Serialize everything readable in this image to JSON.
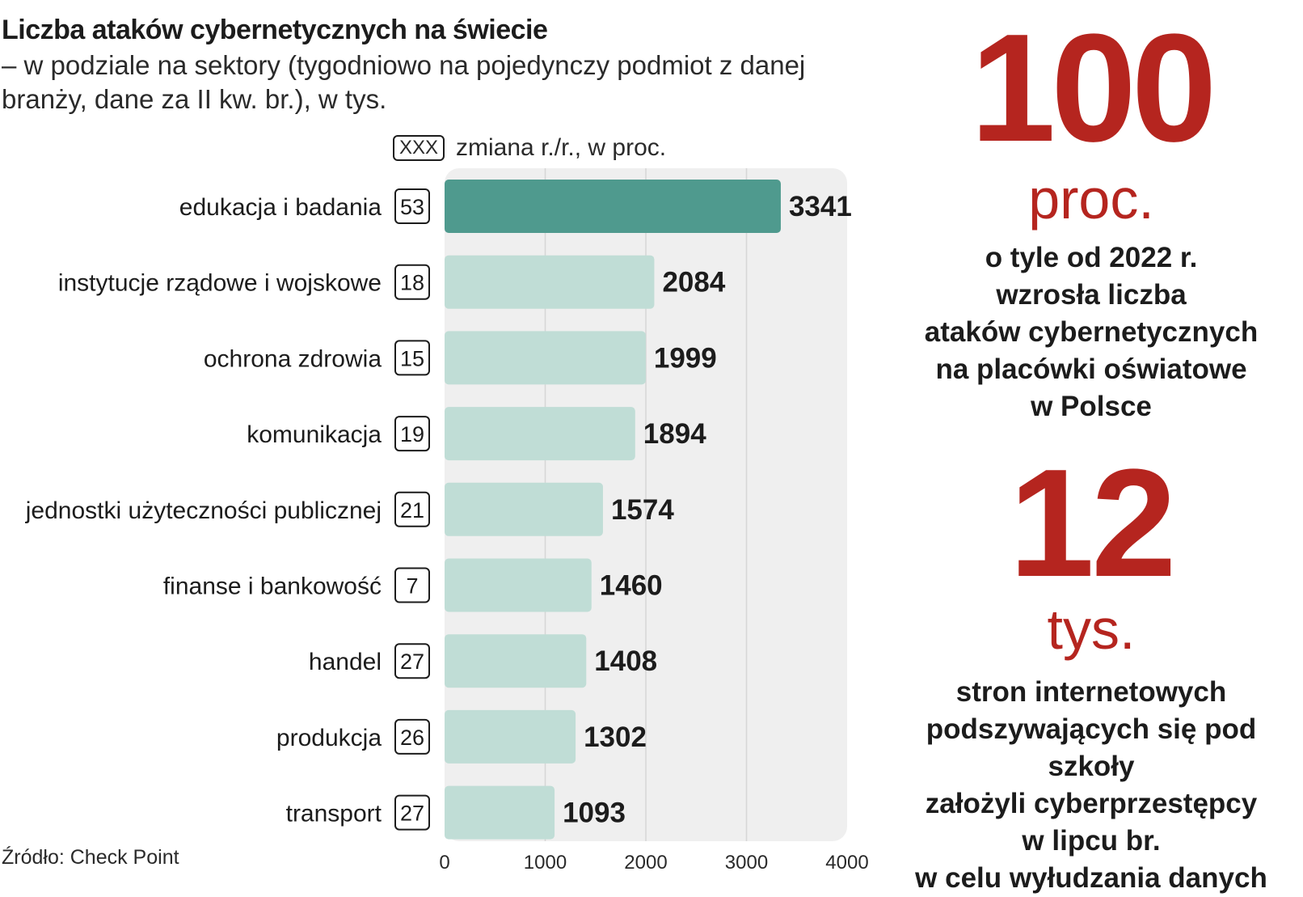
{
  "header": {
    "title": "Liczba ataków cybernetycznych na świecie",
    "subtitle": "– w podziale na sektory (tygodniowo na pojedynczy podmiot z danej branży, dane za II kw. br.), w tys."
  },
  "legend": {
    "box_label": "XXX",
    "text": "zmiana r./r., w proc."
  },
  "source": "Źródło: Check Point",
  "colors": {
    "highlight_bar": "#4f9a8e",
    "bar": "#c0ddd6",
    "accent_red": "#b5251f",
    "plot_bg": "#efefef"
  },
  "chart_data": {
    "type": "bar",
    "orientation": "horizontal",
    "title": "Liczba ataków cybernetycznych na świecie",
    "categories": [
      "edukacja i badania",
      "instytucje rządowe i wojskowe",
      "ochrona zdrowia",
      "komunikacja",
      "jednostki użyteczności publicznej",
      "finanse i bankowość",
      "handel",
      "produkcja",
      "transport"
    ],
    "values": [
      3341,
      2084,
      1999,
      1894,
      1574,
      1460,
      1408,
      1302,
      1093
    ],
    "yoy_change_pct": [
      53,
      18,
      15,
      19,
      21,
      7,
      27,
      26,
      27
    ],
    "xlim": [
      0,
      4000
    ],
    "xticks": [
      0,
      1000,
      2000,
      3000,
      4000
    ],
    "highlight_index": 0
  },
  "facts": [
    {
      "number": "100",
      "unit": "proc.",
      "text": [
        "o tyle od 2022 r.",
        "wzrosła liczba",
        "ataków cybernetycznych",
        "na placówki oświatowe",
        "w Polsce"
      ]
    },
    {
      "number": "12",
      "unit": "tys.",
      "text": [
        "stron internetowych",
        "podszywających się pod szkoły",
        "założyli cyberprzestępcy",
        "w lipcu br.",
        "w celu wyłudzania danych"
      ]
    }
  ]
}
